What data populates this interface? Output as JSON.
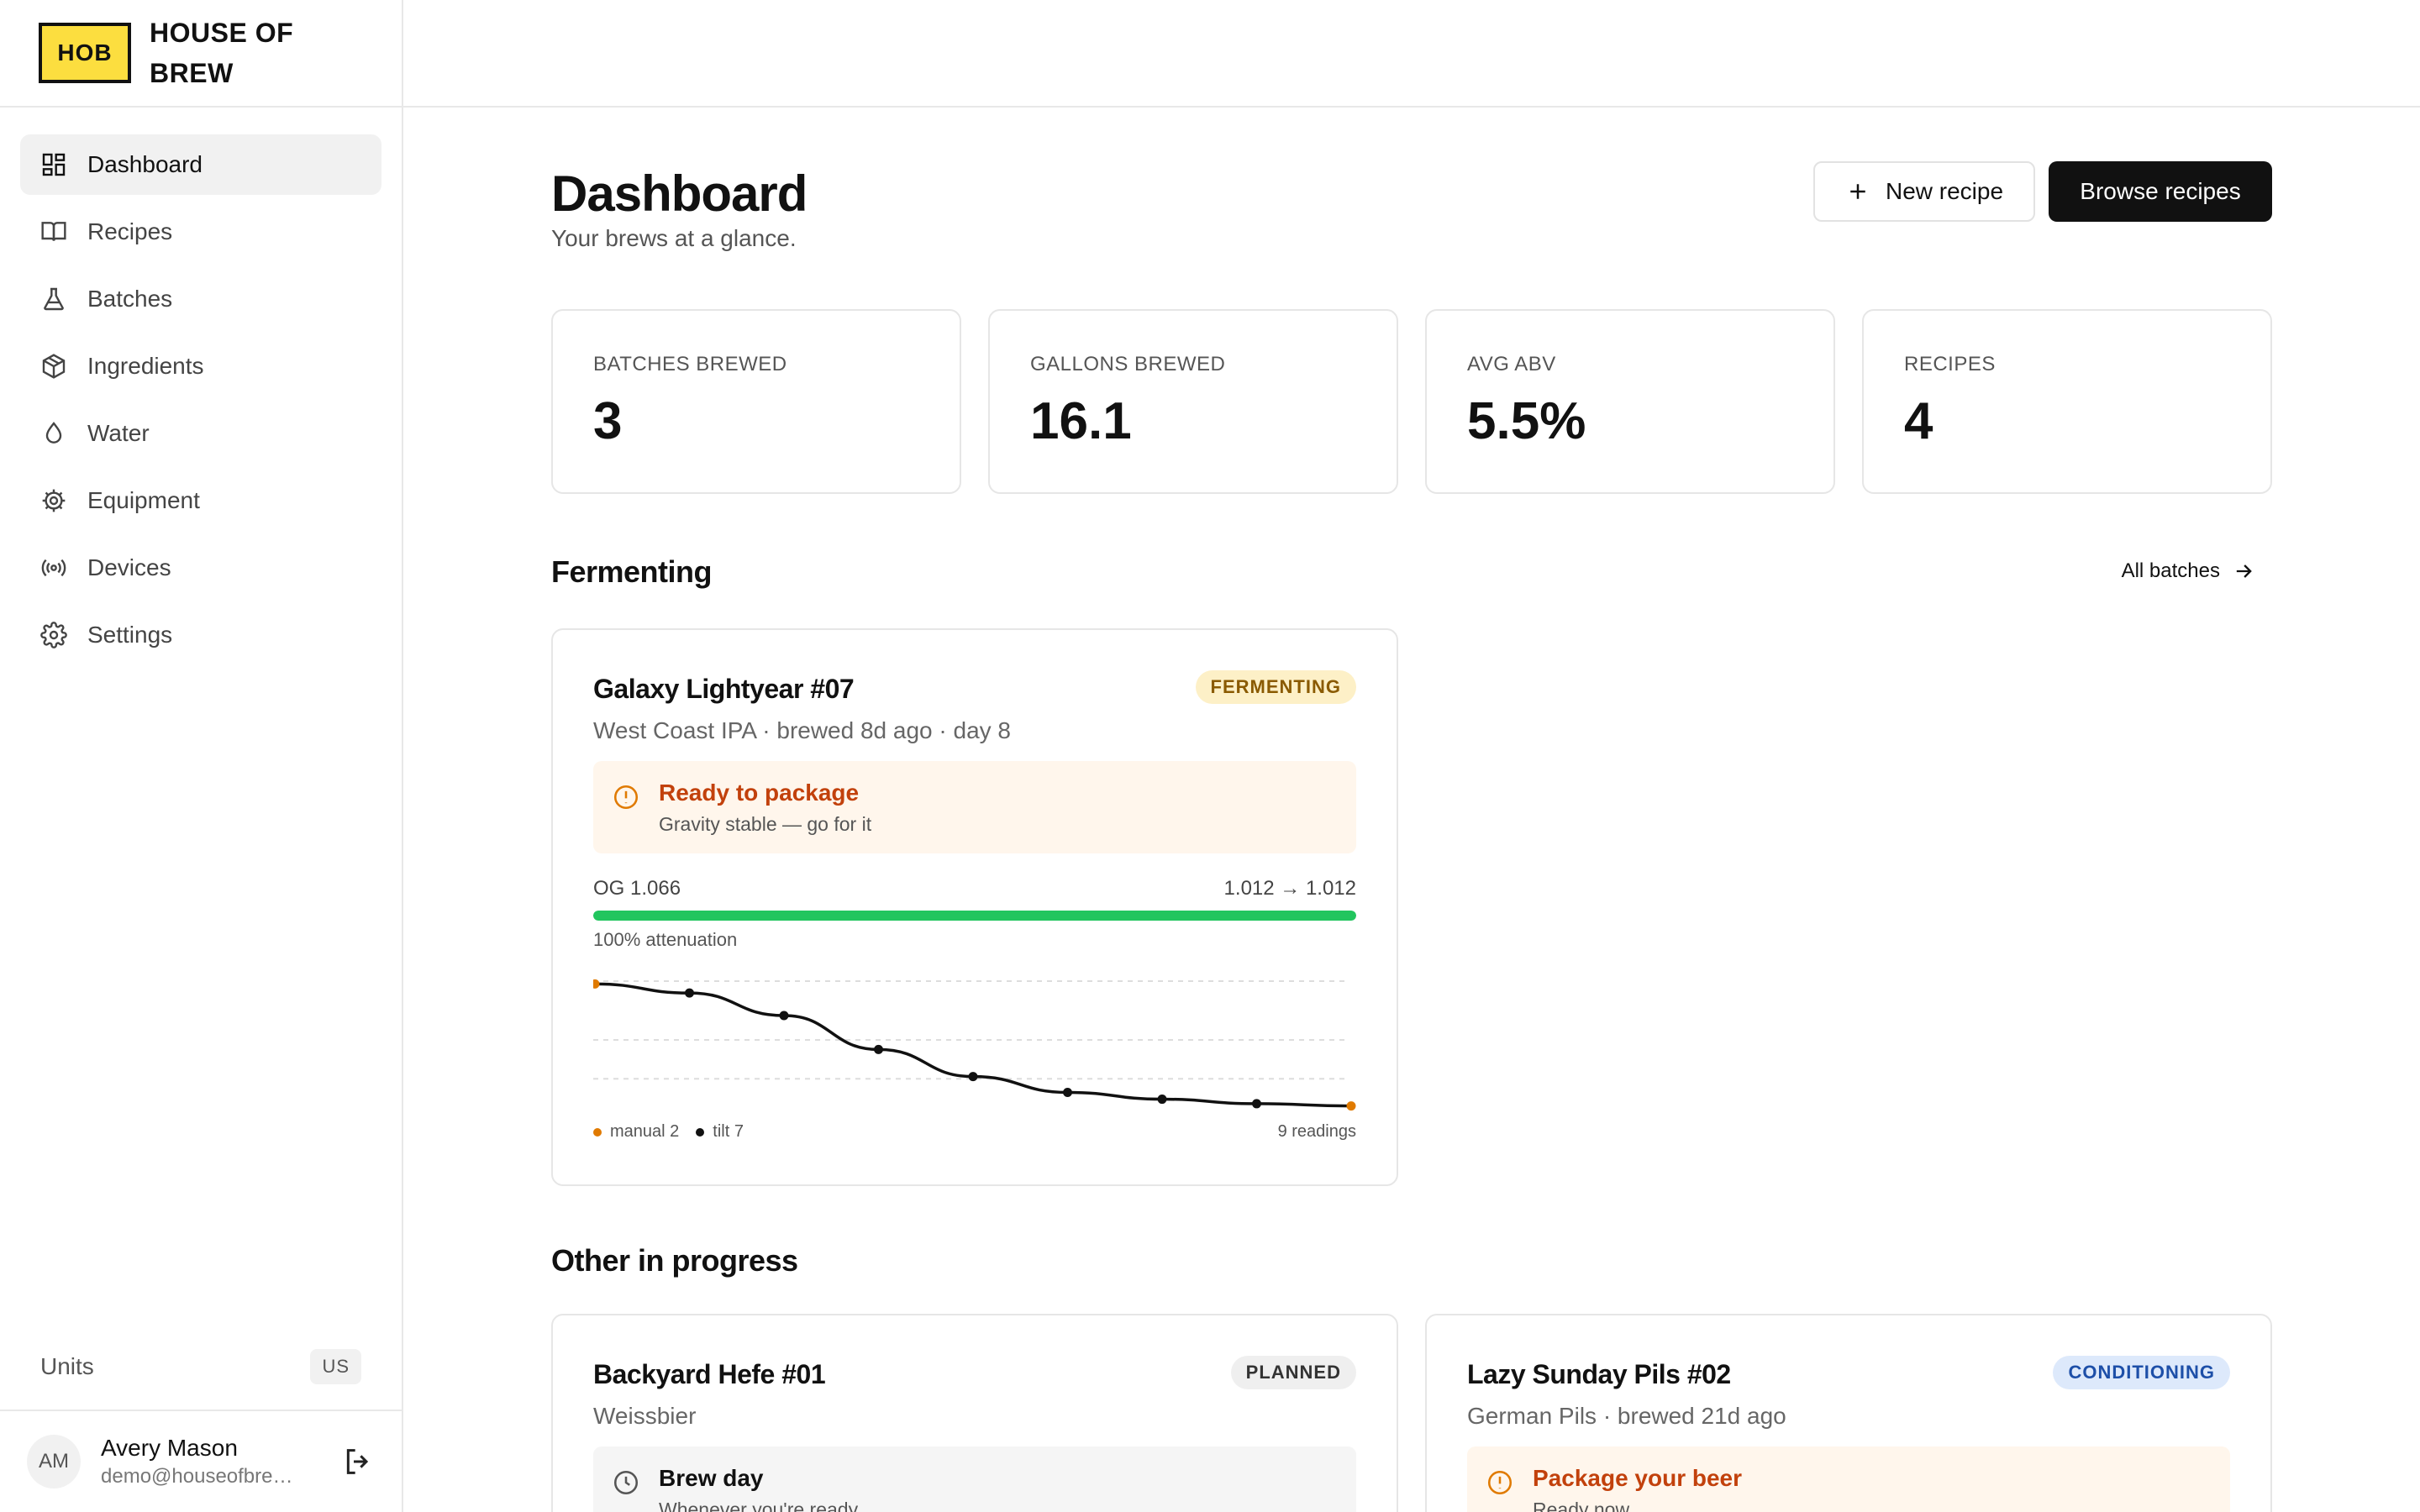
{
  "brand": {
    "logo_text": "HOB",
    "name": "HOUSE OF BREW"
  },
  "sidebar": {
    "items": [
      {
        "label": "Dashboard",
        "icon": "dashboard-icon",
        "active": true
      },
      {
        "label": "Recipes",
        "icon": "book-icon"
      },
      {
        "label": "Batches",
        "icon": "flask-icon"
      },
      {
        "label": "Ingredients",
        "icon": "box-icon"
      },
      {
        "label": "Water",
        "icon": "drop-icon"
      },
      {
        "label": "Equipment",
        "icon": "cog-icon"
      },
      {
        "label": "Devices",
        "icon": "broadcast-icon"
      },
      {
        "label": "Settings",
        "icon": "gear-icon"
      }
    ],
    "units": {
      "label": "Units",
      "value": "US"
    },
    "user": {
      "initials": "AM",
      "name": "Avery Mason",
      "email": "demo@houseofbrew.app"
    }
  },
  "header": {
    "title": "Dashboard",
    "subtitle": "Your brews at a glance.",
    "new_recipe_label": "New recipe",
    "browse_recipes_label": "Browse recipes"
  },
  "stats": [
    {
      "label": "BATCHES BREWED",
      "value": "3"
    },
    {
      "label": "GALLONS BREWED",
      "value": "16.1"
    },
    {
      "label": "AVG ABV",
      "value": "5.5%"
    },
    {
      "label": "RECIPES",
      "value": "4"
    }
  ],
  "fermenting": {
    "section_title": "Fermenting",
    "all_batches_label": "All batches",
    "batch": {
      "title": "Galaxy Lightyear #07",
      "status": "FERMENTING",
      "subtitle": "West Coast IPA · brewed 8d ago · day 8",
      "alert_title": "Ready to package",
      "alert_text": "Gravity stable — go for it",
      "og": "OG 1.066",
      "gravity_change": "1.012 → 1.012",
      "attenuation_fraction": 1.0,
      "attenuation_text": "100% attenuation",
      "legend_manual": "manual 2",
      "legend_tilt": "tilt 7",
      "readings": "9 readings",
      "colors": {
        "manual": "#e07a00",
        "tilt": "#111111",
        "progress": "#22c55e"
      }
    }
  },
  "chart_data": {
    "type": "line",
    "series": [
      {
        "name": "manual",
        "points": [
          {
            "x": 0,
            "y": 1.066
          },
          {
            "x": 8,
            "y": 1.012
          }
        ]
      },
      {
        "name": "tilt",
        "points": [
          {
            "x": 1,
            "y": 1.062
          },
          {
            "x": 2,
            "y": 1.052
          },
          {
            "x": 3,
            "y": 1.037
          },
          {
            "x": 4,
            "y": 1.025
          },
          {
            "x": 5,
            "y": 1.018
          },
          {
            "x": 6,
            "y": 1.015
          },
          {
            "x": 7,
            "y": 1.013
          }
        ]
      }
    ],
    "xlim": [
      0,
      8
    ],
    "ylim": [
      1.01,
      1.068
    ],
    "grid": true
  },
  "other": {
    "section_title": "Other in progress",
    "batches": [
      {
        "title": "Backyard Hefe #01",
        "status": "PLANNED",
        "subtitle": "Weissbier",
        "alert_title": "Brew day",
        "alert_text": "Whenever you're ready"
      },
      {
        "title": "Lazy Sunday Pils #02",
        "status": "CONDITIONING",
        "subtitle": "German Pils · brewed 21d ago",
        "alert_title": "Package your beer",
        "alert_text": "Ready now"
      }
    ]
  }
}
